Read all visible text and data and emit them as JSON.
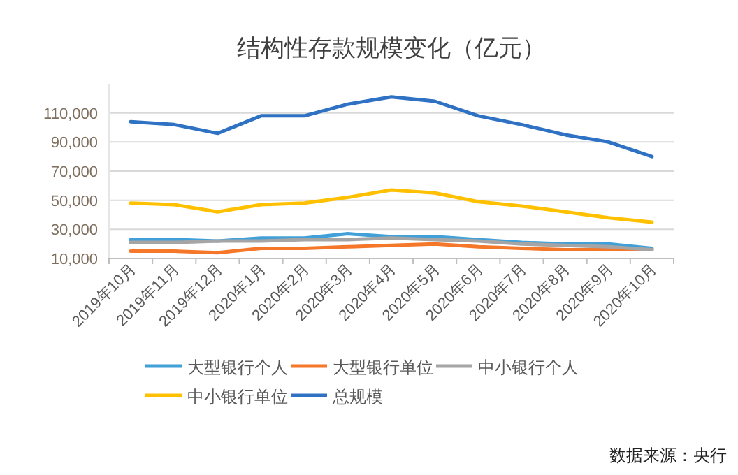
{
  "chart_data": {
    "type": "line",
    "title": "结构性存款规模变化（亿元）",
    "categories": [
      "2019年10月",
      "2019年11月",
      "2019年12月",
      "2020年1月",
      "2020年2月",
      "2020年3月",
      "2020年4月",
      "2020年5月",
      "2020年6月",
      "2020年7月",
      "2020年8月",
      "2020年9月",
      "2020年10月"
    ],
    "series": [
      {
        "name": "大型银行个人",
        "color": "#41a0d8",
        "values": [
          23000,
          23000,
          22000,
          24000,
          24000,
          27000,
          25000,
          25000,
          23000,
          21000,
          20000,
          20000,
          17000
        ]
      },
      {
        "name": "大型银行单位",
        "color": "#f4772a",
        "values": [
          15000,
          15000,
          14000,
          17000,
          17000,
          18000,
          19000,
          20000,
          18000,
          17000,
          16000,
          16000,
          16000
        ]
      },
      {
        "name": "中小银行个人",
        "color": "#a5a5a5",
        "values": [
          21000,
          21000,
          22000,
          22000,
          23000,
          23000,
          24000,
          23000,
          22000,
          20000,
          19000,
          18000,
          16000
        ]
      },
      {
        "name": "中小银行单位",
        "color": "#ffc000",
        "values": [
          48000,
          47000,
          42000,
          47000,
          48000,
          52000,
          57000,
          55000,
          49000,
          46000,
          42000,
          38000,
          35000
        ]
      },
      {
        "name": "总规模",
        "color": "#2f72c4",
        "values": [
          104000,
          102000,
          96000,
          108000,
          108000,
          116000,
          121000,
          118000,
          108000,
          102000,
          95000,
          90000,
          80000
        ]
      }
    ],
    "ylim": [
      10000,
      130000
    ],
    "yticks": [
      {
        "value": 10000,
        "label": "10,000"
      },
      {
        "value": 30000,
        "label": "30,000"
      },
      {
        "value": 50000,
        "label": "50,000"
      },
      {
        "value": 70000,
        "label": "70,000"
      },
      {
        "value": 90000,
        "label": "90,000"
      },
      {
        "value": 110000,
        "label": "110,000"
      }
    ],
    "grid": "y",
    "legend": "bottom",
    "marker": "none",
    "line_style": "solid",
    "annotations": [
      "数据来源：央行"
    ]
  }
}
